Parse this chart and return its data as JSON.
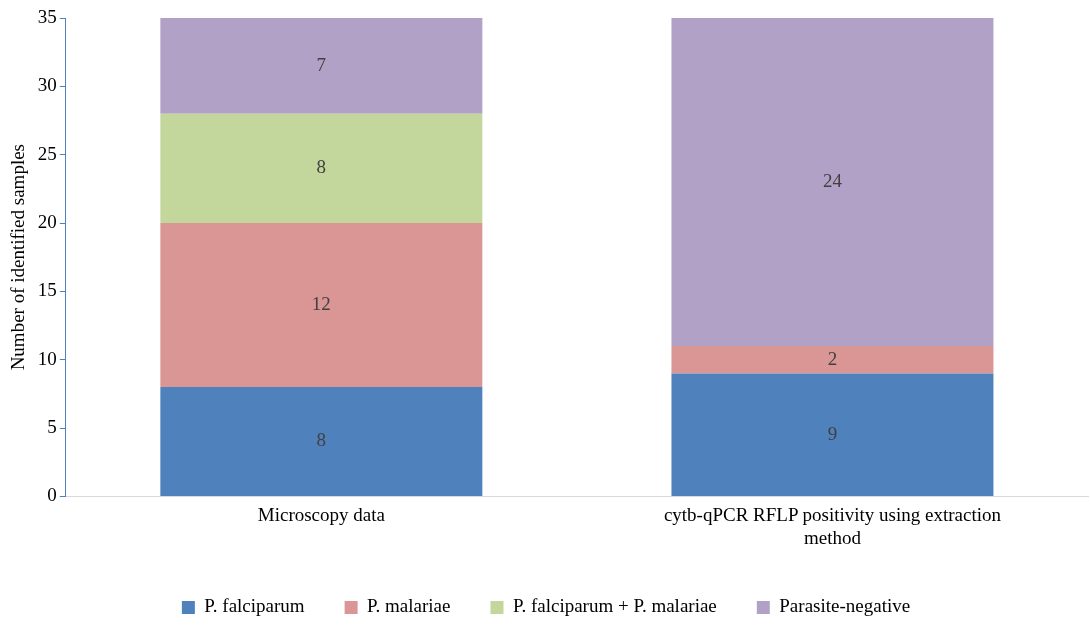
{
  "chart_data": {
    "type": "bar",
    "stacked": true,
    "ylabel": "Number of identified samples",
    "categories": [
      "Microscopy data",
      "cytb-qPCR RFLP positivity using extraction method"
    ],
    "series": [
      {
        "name": "P. falciparum",
        "color": "#4f81bd",
        "values": [
          8,
          9
        ]
      },
      {
        "name": "P. malariae",
        "color": "#d99694",
        "values": [
          12,
          2
        ]
      },
      {
        "name": "P. falciparum + P. malariae",
        "color": "#c3d69b",
        "values": [
          8,
          null
        ]
      },
      {
        "name": "Parasite-negative",
        "color": "#b2a1c7",
        "values": [
          7,
          24
        ]
      }
    ],
    "ylim": [
      0,
      35
    ],
    "yticks": [
      0,
      5,
      10,
      15,
      20,
      25,
      30,
      35
    ],
    "grid": false,
    "legend": "bottom",
    "data_labels": true
  }
}
